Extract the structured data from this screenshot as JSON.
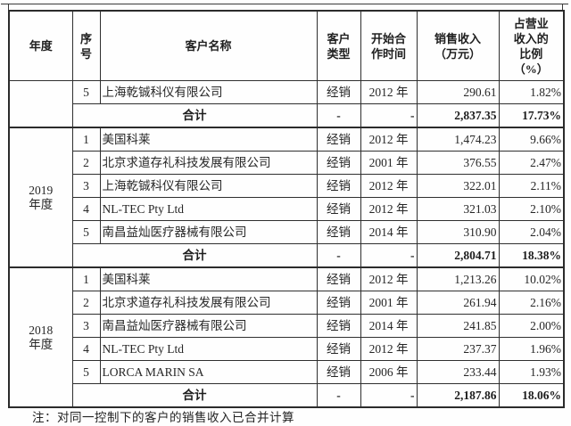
{
  "table": {
    "headers": {
      "year": "年度",
      "seq": "序\n号",
      "customer": "客户名称",
      "type": "客户\n类型",
      "start": "开始合\n作时间",
      "revenue": "销售收入\n（万元）",
      "ratio": "占营业\n收入的\n比例\n（%）"
    },
    "total_label": "合计",
    "dash": "-",
    "sections": [
      {
        "year": "",
        "rows": [
          {
            "seq": "5",
            "customer": "上海乾铖科仪有限公司",
            "type": "经销",
            "start": "2012 年",
            "revenue": "290.61",
            "ratio": "1.82%"
          }
        ],
        "total": {
          "revenue": "2,837.35",
          "ratio": "17.73%"
        }
      },
      {
        "year": "2019\n年度",
        "rows": [
          {
            "seq": "1",
            "customer": "美国科莱",
            "type": "经销",
            "start": "2012 年",
            "revenue": "1,474.23",
            "ratio": "9.66%"
          },
          {
            "seq": "2",
            "customer": "北京求道存礼科技发展有限公司",
            "type": "经销",
            "start": "2001 年",
            "revenue": "376.55",
            "ratio": "2.47%"
          },
          {
            "seq": "3",
            "customer": "上海乾铖科仪有限公司",
            "type": "经销",
            "start": "2012 年",
            "revenue": "322.01",
            "ratio": "2.11%"
          },
          {
            "seq": "4",
            "customer": "NL-TEC Pty Ltd",
            "type": "经销",
            "start": "2012 年",
            "revenue": "321.03",
            "ratio": "2.10%"
          },
          {
            "seq": "5",
            "customer": "南昌益灿医疗器械有限公司",
            "type": "经销",
            "start": "2014 年",
            "revenue": "310.90",
            "ratio": "2.04%"
          }
        ],
        "total": {
          "revenue": "2,804.71",
          "ratio": "18.38%"
        }
      },
      {
        "year": "2018\n年度",
        "rows": [
          {
            "seq": "1",
            "customer": "美国科莱",
            "type": "经销",
            "start": "2012 年",
            "revenue": "1,213.26",
            "ratio": "10.02%"
          },
          {
            "seq": "2",
            "customer": "北京求道存礼科技发展有限公司",
            "type": "经销",
            "start": "2001 年",
            "revenue": "261.94",
            "ratio": "2.16%"
          },
          {
            "seq": "3",
            "customer": "南昌益灿医疗器械有限公司",
            "type": "经销",
            "start": "2014 年",
            "revenue": "241.85",
            "ratio": "2.00%"
          },
          {
            "seq": "4",
            "customer": "NL-TEC Pty Ltd",
            "type": "经销",
            "start": "2012 年",
            "revenue": "237.37",
            "ratio": "1.96%"
          },
          {
            "seq": "5",
            "customer": "LORCA MARIN SA",
            "type": "经销",
            "start": "2006 年",
            "revenue": "233.44",
            "ratio": "1.93%"
          }
        ],
        "total": {
          "revenue": "2,187.86",
          "ratio": "18.06%"
        }
      }
    ]
  },
  "note": "注：对同一控制下的客户的销售收入已合并计算"
}
